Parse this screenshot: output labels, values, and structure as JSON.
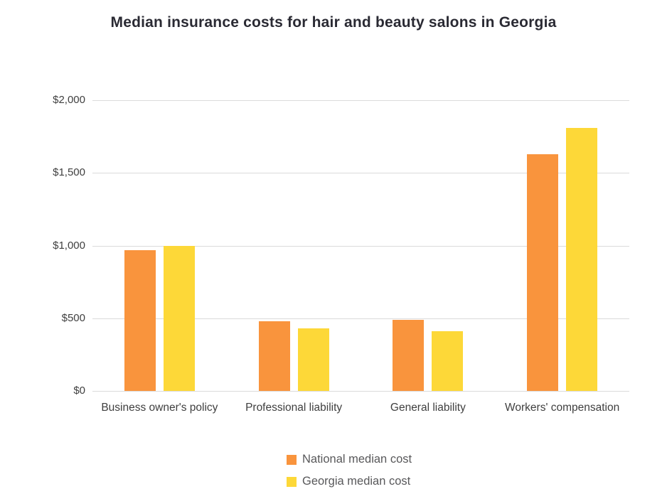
{
  "title": "Median insurance costs for hair and beauty salons in Georgia",
  "chart_data": {
    "type": "bar",
    "title": "Median insurance costs for hair and beauty salons in Georgia",
    "categories": [
      "Business owner's policy",
      "Professional liability",
      "General liability",
      "Workers' compensation"
    ],
    "series": [
      {
        "name": "National median cost",
        "color": "#f9943d",
        "values": [
          970,
          480,
          490,
          1630
        ]
      },
      {
        "name": "Georgia median cost",
        "color": "#fdd838",
        "values": [
          1000,
          430,
          410,
          1810
        ]
      }
    ],
    "xlabel": "",
    "ylabel": "",
    "ylim": [
      0,
      2000
    ],
    "ytick_step": 500,
    "ytick_labels": [
      "$0",
      "$500",
      "$1,000",
      "$1,500",
      "$2,000"
    ],
    "grid": true,
    "legend_position": "bottom-center",
    "background_color": "#ffffff",
    "gridline_color": "#dbdbdb",
    "axis_text_color": "#3f3f3f",
    "legend_text_color": "#58585a",
    "title_color": "#2a2a33"
  }
}
